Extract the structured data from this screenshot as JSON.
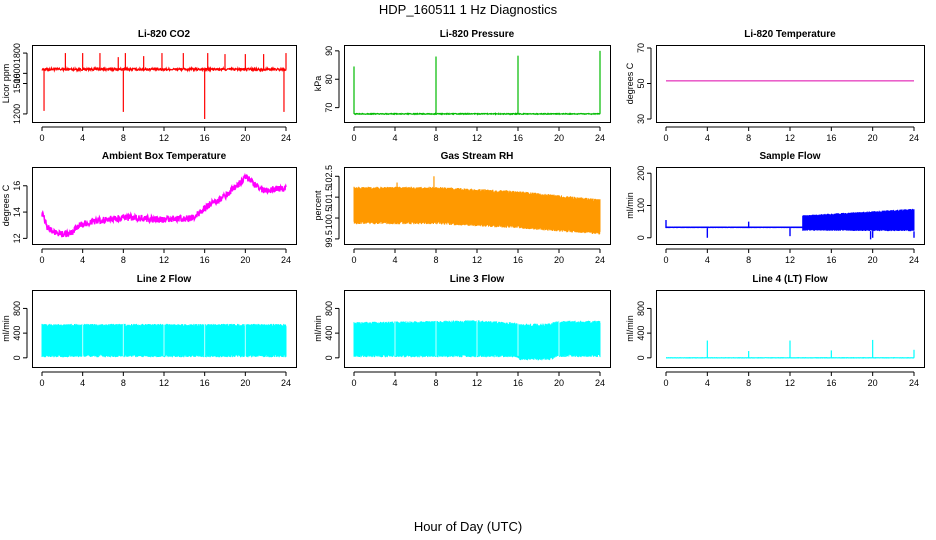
{
  "title": "HDP_160511  1 Hz Diagnostics",
  "xlabel": "Hour of Day (UTC)",
  "chart_data": [
    {
      "id": "co2",
      "type": "line",
      "title": "Li-820 CO2",
      "ylabel": "Licor ppm",
      "color": "#ff0000",
      "xlim": [
        0,
        24
      ],
      "ylim": [
        1150,
        1850
      ],
      "xticks": [
        0,
        4,
        8,
        12,
        16,
        20,
        24
      ],
      "yticks": [
        1200,
        1500,
        1600,
        1800
      ],
      "baseline": 1640,
      "band": 25,
      "spikes": [
        [
          0.2,
          1230
        ],
        [
          2.3,
          1800
        ],
        [
          4.0,
          1800
        ],
        [
          5.7,
          1800
        ],
        [
          7.5,
          1760
        ],
        [
          8.0,
          1220
        ],
        [
          8.2,
          1800
        ],
        [
          10.0,
          1770
        ],
        [
          11.8,
          1800
        ],
        [
          13.9,
          1800
        ],
        [
          16.0,
          1150
        ],
        [
          16.3,
          1800
        ],
        [
          18.0,
          1790
        ],
        [
          20.0,
          1790
        ],
        [
          21.8,
          1790
        ],
        [
          23.8,
          1220
        ],
        [
          24.0,
          1800
        ]
      ]
    },
    {
      "id": "pressure",
      "type": "line",
      "title": "Li-820 Pressure",
      "ylabel": "kPa",
      "color": "#00bb00",
      "xlim": [
        0,
        24
      ],
      "ylim": [
        66,
        91
      ],
      "xticks": [
        0,
        4,
        8,
        12,
        16,
        20,
        24
      ],
      "yticks": [
        70,
        80,
        90
      ],
      "baseline": 67.8,
      "band": 0.3,
      "spikes": [
        [
          0.0,
          84.5
        ],
        [
          8.0,
          88.0
        ],
        [
          16.0,
          88.3
        ],
        [
          24.0,
          90.0
        ]
      ]
    },
    {
      "id": "temperature",
      "type": "line",
      "title": "Li-820 Temperature",
      "ylabel": "degrees C",
      "color": "#dd00aa",
      "xlim": [
        0,
        24
      ],
      "ylim": [
        30,
        70
      ],
      "xticks": [
        0,
        4,
        8,
        12,
        16,
        20,
        24
      ],
      "yticks": [
        30,
        50,
        70
      ],
      "x": [
        0,
        24
      ],
      "y": [
        51.5,
        51.5
      ]
    },
    {
      "id": "ambient",
      "type": "line",
      "title": "Ambient Box Temperature",
      "ylabel": "degrees C",
      "color": "#ff00ff",
      "xlim": [
        0,
        24
      ],
      "ylim": [
        11.8,
        17.2
      ],
      "xticks": [
        0,
        4,
        8,
        12,
        16,
        20,
        24
      ],
      "yticks": [
        12,
        14,
        16
      ],
      "x": [
        0,
        0.5,
        1.0,
        2.0,
        3.0,
        3.5,
        4.0,
        5.0,
        7.0,
        9.0,
        10.0,
        12.0,
        13.0,
        14.5,
        15.5,
        16.5,
        18.0,
        19.0,
        20.0,
        20.5,
        21.0,
        22.0,
        23.0,
        24.0
      ],
      "y": [
        13.9,
        12.9,
        12.5,
        12.3,
        12.4,
        12.9,
        13.1,
        13.3,
        13.5,
        13.6,
        13.5,
        13.4,
        13.5,
        13.5,
        13.9,
        14.6,
        15.2,
        15.9,
        16.6,
        16.5,
        16.0,
        15.6,
        15.8,
        15.8
      ],
      "band": 0.25
    },
    {
      "id": "rh",
      "type": "line",
      "title": "Gas Stream RH",
      "ylabel": "percent",
      "color": "#ff9900",
      "xlim": [
        0,
        24
      ],
      "ylim": [
        99.4,
        102.8
      ],
      "xticks": [
        0,
        4,
        8,
        12,
        16,
        20,
        24
      ],
      "yticks": [
        99.5,
        100.5,
        101.5,
        102.5
      ],
      "x": [
        0,
        8,
        16,
        24
      ],
      "hi": [
        102.0,
        102.0,
        101.8,
        101.4
      ],
      "lo": [
        100.2,
        100.2,
        100.0,
        99.7
      ]
    },
    {
      "id": "sampleflow",
      "type": "line",
      "title": "Sample Flow",
      "ylabel": "ml/min",
      "color": "#0000ff",
      "xlim": [
        0,
        24
      ],
      "ylim": [
        -10,
        210
      ],
      "xticks": [
        0,
        4,
        8,
        12,
        16,
        20,
        24
      ],
      "yticks": [
        0,
        100,
        200
      ],
      "x": [
        0,
        13.2,
        13.2,
        24
      ],
      "hi": [
        35,
        35,
        70,
        90
      ],
      "lo": [
        30,
        30,
        22,
        20
      ],
      "spikes": [
        [
          0.0,
          55
        ],
        [
          4.0,
          0
        ],
        [
          8.0,
          50
        ],
        [
          12.0,
          5
        ],
        [
          19.8,
          -5
        ],
        [
          20.0,
          0
        ],
        [
          24.0,
          0
        ]
      ]
    },
    {
      "id": "line2",
      "type": "area",
      "title": "Line 2 Flow",
      "ylabel": "ml/min",
      "color": "#00ffff",
      "xlim": [
        0,
        24
      ],
      "ylim": [
        -100,
        1050
      ],
      "xticks": [
        0,
        4,
        8,
        12,
        16,
        20,
        24
      ],
      "yticks": [
        0,
        400,
        800
      ],
      "x": [
        0,
        24
      ],
      "hi": [
        550,
        550
      ],
      "lo": [
        10,
        10
      ],
      "gaps": [
        4.0,
        8.0,
        12.0,
        16.0,
        20.0
      ]
    },
    {
      "id": "line3",
      "type": "area",
      "title": "Line 3 Flow",
      "ylabel": "ml/min",
      "color": "#00ffff",
      "xlim": [
        0,
        24
      ],
      "ylim": [
        -100,
        1050
      ],
      "xticks": [
        0,
        4,
        8,
        12,
        16,
        20,
        24
      ],
      "yticks": [
        0,
        400,
        800
      ],
      "x": [
        0,
        4,
        8,
        12,
        15.8,
        16.2,
        19.2,
        19.8,
        24
      ],
      "hi": [
        580,
        590,
        600,
        610,
        570,
        550,
        560,
        600,
        600
      ],
      "lo": [
        10,
        10,
        10,
        10,
        10,
        -40,
        -40,
        10,
        10
      ],
      "gaps": [
        4.0,
        8.0,
        12.0,
        16.0,
        20.0
      ]
    },
    {
      "id": "line4",
      "type": "line",
      "title": "Line 4 (LT) Flow",
      "ylabel": "ml/min",
      "color": "#00ffff",
      "xlim": [
        0,
        24
      ],
      "ylim": [
        -100,
        1050
      ],
      "xticks": [
        0,
        4,
        8,
        12,
        16,
        20,
        24
      ],
      "yticks": [
        0,
        400,
        800
      ],
      "baseline": 0,
      "band": 4,
      "spikes": [
        [
          4.0,
          280
        ],
        [
          8.0,
          110
        ],
        [
          12.0,
          280
        ],
        [
          16.0,
          120
        ],
        [
          20.0,
          290
        ],
        [
          24.0,
          130
        ]
      ]
    }
  ]
}
